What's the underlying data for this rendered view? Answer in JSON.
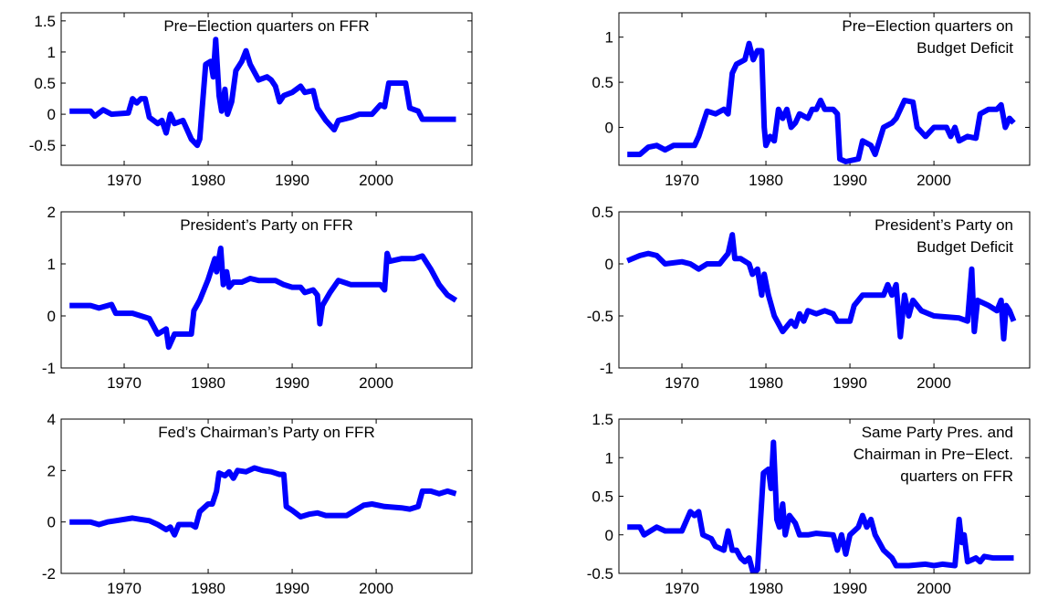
{
  "chart_data": [
    {
      "type": "line",
      "title": [
        "Pre−Election quarters on FFR"
      ],
      "x": [
        1963.5,
        1966,
        1966.5,
        1967.5,
        1968.5,
        1970.5,
        1971,
        1971.5,
        1972,
        1972.5,
        1973,
        1974,
        1974.5,
        1975,
        1975.5,
        1976,
        1977,
        1977.5,
        1978,
        1978.7,
        1979,
        1979.7,
        1980.3,
        1980.6,
        1980.9,
        1981.3,
        1981.6,
        1982,
        1982.3,
        1982.8,
        1983.3,
        1984,
        1984.5,
        1985,
        1986,
        1987,
        1987.5,
        1988,
        1988.5,
        1989,
        1990,
        1991,
        1991.5,
        1992.5,
        1993,
        1994,
        1995,
        1995.5,
        1997,
        1998,
        1999.5,
        2000.5,
        2001,
        2001.5,
        2003.5,
        2004,
        2005,
        2005.5,
        2009.5
      ],
      "series": [
        {
          "color": "#0000ff",
          "values": [
            0.05,
            0.05,
            -0.03,
            0.07,
            0.0,
            0.02,
            0.25,
            0.18,
            0.25,
            0.25,
            -0.05,
            -0.15,
            -0.1,
            -0.3,
            0.0,
            -0.15,
            -0.1,
            -0.25,
            -0.4,
            -0.5,
            -0.4,
            0.8,
            0.85,
            0.6,
            1.2,
            0.3,
            0.05,
            0.4,
            0.0,
            0.2,
            0.7,
            0.85,
            1.02,
            0.8,
            0.55,
            0.6,
            0.55,
            0.45,
            0.2,
            0.3,
            0.35,
            0.45,
            0.35,
            0.38,
            0.1,
            -0.1,
            -0.25,
            -0.1,
            -0.05,
            0.0,
            0.0,
            0.15,
            0.12,
            0.5,
            0.5,
            0.1,
            0.05,
            -0.08,
            -0.08
          ]
        }
      ],
      "xlim": [
        1962.5,
        2011.4
      ],
      "xticks": [
        1970,
        1980,
        1990,
        2000
      ],
      "ylim": [
        -0.82,
        1.63
      ],
      "yticks": [
        -0.5,
        0,
        0.5,
        1,
        1.5
      ]
    },
    {
      "type": "line",
      "title": [
        "Pre−Election quarters on",
        "Budget Deficit"
      ],
      "x": [
        1963.5,
        1965,
        1966,
        1967,
        1968,
        1969,
        1971.5,
        1972,
        1973,
        1974,
        1975,
        1975.5,
        1976,
        1976.5,
        1977.5,
        1978,
        1978.5,
        1979,
        1979.5,
        1979.8,
        1980,
        1980.5,
        1981,
        1981.5,
        1982,
        1982.5,
        1983,
        1983.5,
        1984,
        1985,
        1985.5,
        1986,
        1986.5,
        1987,
        1988,
        1988.5,
        1988.8,
        1989.5,
        1991,
        1991.5,
        1992.5,
        1993,
        1994,
        1995,
        1995.5,
        1996.5,
        1997.5,
        1998,
        1999,
        2000,
        2001.5,
        2002,
        2002.5,
        2003,
        2004,
        2005,
        2005.5,
        2006.5,
        2007.5,
        2008,
        2008.5,
        2009,
        2009.5
      ],
      "series": [
        {
          "color": "#0000ff",
          "values": [
            -0.3,
            -0.3,
            -0.22,
            -0.2,
            -0.25,
            -0.2,
            -0.2,
            -0.1,
            0.18,
            0.15,
            0.2,
            0.15,
            0.6,
            0.7,
            0.75,
            0.93,
            0.75,
            0.85,
            0.85,
            0.0,
            -0.2,
            -0.1,
            -0.15,
            0.2,
            0.1,
            0.2,
            0.0,
            0.05,
            0.15,
            0.1,
            0.2,
            0.2,
            0.3,
            0.2,
            0.2,
            0.15,
            -0.35,
            -0.38,
            -0.35,
            -0.15,
            -0.2,
            -0.3,
            0.0,
            0.05,
            0.1,
            0.3,
            0.28,
            0.0,
            -0.1,
            0.0,
            0.0,
            -0.1,
            0.0,
            -0.15,
            -0.1,
            -0.12,
            0.15,
            0.2,
            0.2,
            0.25,
            0.0,
            0.1,
            0.05
          ]
        }
      ],
      "xlim": [
        1962.5,
        2011.4
      ],
      "xticks": [
        1970,
        1980,
        1990,
        2000
      ],
      "ylim": [
        -0.42,
        1.27
      ],
      "yticks": [
        0,
        0.5,
        1
      ]
    },
    {
      "type": "line",
      "title": [
        "President’s Party on FFR"
      ],
      "x": [
        1963.5,
        1966,
        1967,
        1968.5,
        1969,
        1971,
        1972,
        1973,
        1974,
        1975,
        1975.3,
        1976,
        1977,
        1978,
        1978.3,
        1979,
        1980,
        1980.8,
        1981,
        1981.5,
        1981.8,
        1982.2,
        1982.5,
        1983,
        1984,
        1985,
        1986,
        1988,
        1989,
        1990,
        1991,
        1991.5,
        1992.5,
        1993,
        1993.3,
        1993.6,
        1994.5,
        1995.5,
        1997,
        1999,
        2000.5,
        2001,
        2001.3,
        2001.6,
        2003,
        2004.5,
        2005.5,
        2006.5,
        2007.5,
        2008.5,
        2009.5
      ],
      "series": [
        {
          "color": "#0000ff",
          "values": [
            0.2,
            0.2,
            0.15,
            0.22,
            0.05,
            0.05,
            0.0,
            -0.05,
            -0.35,
            -0.25,
            -0.6,
            -0.35,
            -0.35,
            -0.35,
            0.1,
            0.3,
            0.7,
            1.1,
            0.85,
            1.3,
            0.6,
            0.85,
            0.55,
            0.65,
            0.65,
            0.72,
            0.68,
            0.68,
            0.6,
            0.55,
            0.55,
            0.45,
            0.5,
            0.4,
            -0.15,
            0.2,
            0.45,
            0.68,
            0.6,
            0.6,
            0.6,
            0.5,
            1.2,
            1.05,
            1.1,
            1.1,
            1.15,
            0.9,
            0.6,
            0.4,
            0.3
          ]
        }
      ],
      "xlim": [
        1962.5,
        2011.4
      ],
      "xticks": [
        1970,
        1980,
        1990,
        2000
      ],
      "ylim": [
        -1,
        2
      ],
      "yticks": [
        -1,
        0,
        1,
        2
      ]
    },
    {
      "type": "line",
      "title": [
        "President’s Party on",
        "Budget Deficit"
      ],
      "x": [
        1963.5,
        1965,
        1966,
        1967,
        1968,
        1970,
        1971,
        1972,
        1973,
        1974.5,
        1975,
        1975.5,
        1976,
        1976.3,
        1977,
        1978,
        1978.4,
        1979,
        1979.5,
        1979.8,
        1980.3,
        1981,
        1982,
        1983,
        1983.5,
        1984,
        1984.5,
        1985,
        1986,
        1987,
        1988,
        1988.5,
        1990,
        1990.5,
        1991.5,
        1993,
        1994,
        1994.5,
        1995,
        1995.5,
        1996,
        1996.5,
        1997,
        1997.5,
        1998.5,
        2000,
        2003,
        2004,
        2004.5,
        2004.8,
        2005.2,
        2006.5,
        2007.5,
        2008,
        2008.3,
        2008.6,
        2009,
        2009.5
      ],
      "series": [
        {
          "color": "#0000ff",
          "values": [
            0.03,
            0.08,
            0.1,
            0.08,
            0.0,
            0.02,
            0.0,
            -0.05,
            0.0,
            0.0,
            0.05,
            0.1,
            0.28,
            0.05,
            0.05,
            0.0,
            -0.1,
            -0.05,
            -0.3,
            -0.1,
            -0.3,
            -0.5,
            -0.65,
            -0.55,
            -0.6,
            -0.48,
            -0.55,
            -0.45,
            -0.48,
            -0.45,
            -0.48,
            -0.55,
            -0.55,
            -0.4,
            -0.3,
            -0.3,
            -0.3,
            -0.2,
            -0.3,
            -0.2,
            -0.7,
            -0.3,
            -0.5,
            -0.35,
            -0.45,
            -0.5,
            -0.52,
            -0.55,
            -0.05,
            -0.65,
            -0.35,
            -0.4,
            -0.45,
            -0.35,
            -0.72,
            -0.4,
            -0.45,
            -0.55
          ]
        }
      ],
      "xlim": [
        1962.5,
        2011.4
      ],
      "xticks": [
        1970,
        1980,
        1990,
        2000
      ],
      "ylim": [
        -1,
        0.5
      ],
      "yticks": [
        -1,
        -0.5,
        0,
        0.5
      ]
    },
    {
      "type": "line",
      "title": [
        "Fed’s Chairman’s Party on FFR"
      ],
      "x": [
        1963.5,
        1966,
        1967,
        1968,
        1969,
        1971,
        1972,
        1973,
        1974,
        1975,
        1975.5,
        1976,
        1976.5,
        1977,
        1978,
        1978.5,
        1979,
        1980,
        1980.5,
        1981,
        1981.3,
        1982,
        1982.5,
        1983,
        1983.5,
        1984.5,
        1985.5,
        1986.5,
        1987.5,
        1988.5,
        1989,
        1989.3,
        1990,
        1991,
        1992,
        1993,
        1994,
        1996.5,
        1997.5,
        1998.5,
        1999.5,
        2001,
        2003,
        2004,
        2005,
        2005.5,
        2006.5,
        2007.5,
        2008.5,
        2009.5
      ],
      "series": [
        {
          "color": "#0000ff",
          "values": [
            0.0,
            0.0,
            -0.1,
            0.0,
            0.05,
            0.15,
            0.1,
            0.05,
            -0.1,
            -0.3,
            -0.2,
            -0.5,
            -0.1,
            -0.1,
            -0.1,
            -0.2,
            0.4,
            0.7,
            0.7,
            1.2,
            1.9,
            1.8,
            1.95,
            1.7,
            2.0,
            1.95,
            2.1,
            2.0,
            1.95,
            1.85,
            1.85,
            0.6,
            0.45,
            0.2,
            0.3,
            0.35,
            0.25,
            0.25,
            0.45,
            0.65,
            0.7,
            0.6,
            0.55,
            0.5,
            0.6,
            1.2,
            1.2,
            1.1,
            1.2,
            1.1
          ]
        }
      ],
      "xlim": [
        1962.5,
        2011.4
      ],
      "xticks": [
        1970,
        1980,
        1990,
        2000
      ],
      "ylim": [
        -2,
        4
      ],
      "yticks": [
        -2,
        0,
        2,
        4
      ]
    },
    {
      "type": "line",
      "title": [
        "Same Party Pres. and",
        "Chairman in Pre−Elect.",
        "quarters on FFR"
      ],
      "x": [
        1963.5,
        1965,
        1965.5,
        1967,
        1968,
        1970,
        1971,
        1971.5,
        1972,
        1972.5,
        1973.5,
        1974,
        1975,
        1975.5,
        1976,
        1976.5,
        1977,
        1977.5,
        1978,
        1978.5,
        1979,
        1979.7,
        1980.3,
        1980.6,
        1980.9,
        1981.3,
        1981.6,
        1982,
        1982.3,
        1982.8,
        1983.5,
        1984,
        1985,
        1986,
        1988,
        1988.5,
        1989,
        1989.5,
        1990,
        1991,
        1991.5,
        1992,
        1992.5,
        1993,
        1994,
        1995,
        1995.5,
        1997,
        1999,
        2000,
        2001,
        2002.5,
        2003,
        2003.3,
        2003.6,
        2004,
        2005,
        2005.5,
        2006,
        2007,
        2009.5
      ],
      "series": [
        {
          "color": "#0000ff",
          "values": [
            0.1,
            0.1,
            0.0,
            0.1,
            0.05,
            0.05,
            0.3,
            0.25,
            0.3,
            0.0,
            -0.05,
            -0.15,
            -0.2,
            0.05,
            -0.2,
            -0.2,
            -0.3,
            -0.35,
            -0.3,
            -0.5,
            -0.45,
            0.8,
            0.85,
            0.6,
            1.2,
            0.2,
            0.1,
            0.4,
            0.0,
            0.25,
            0.15,
            0.0,
            0.0,
            0.02,
            0.0,
            -0.2,
            0.0,
            -0.25,
            0.0,
            0.1,
            0.25,
            0.1,
            0.2,
            0.0,
            -0.2,
            -0.3,
            -0.4,
            -0.4,
            -0.38,
            -0.4,
            -0.38,
            -0.4,
            0.2,
            -0.1,
            0.0,
            -0.35,
            -0.3,
            -0.35,
            -0.28,
            -0.3,
            -0.3
          ]
        }
      ],
      "xlim": [
        1962.5,
        2011.4
      ],
      "xticks": [
        1970,
        1980,
        1990,
        2000
      ],
      "ylim": [
        -0.5,
        1.5
      ],
      "yticks": [
        -0.5,
        0,
        0.5,
        1,
        1.5
      ]
    }
  ]
}
